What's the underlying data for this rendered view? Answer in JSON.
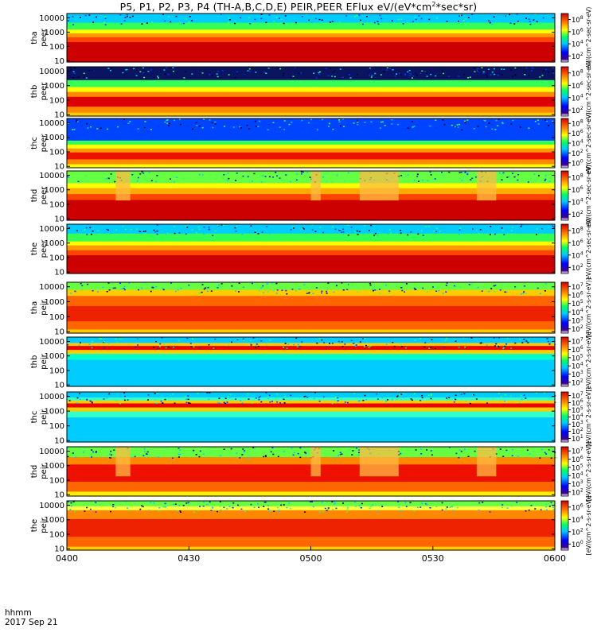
{
  "title": "P5, P1, P2, P3, P4 (TH-A,B,C,D,E) PEIR,PEER EFlux eV/(eV*cm",
  "title_sup": "2",
  "title_tail": "*sec*sr)",
  "footer": {
    "line1": "hhmm",
    "line2": "2017 Sep 21"
  },
  "chart_data": {
    "type": "heatmap",
    "title": "P5, P1, P2, P3, P4 (TH-A,B,C,D,E) PEIR,PEER EFlux eV/(eV*cm2*sec*sr)",
    "x_ticks": [
      "0400",
      "0430",
      "0500",
      "0530",
      "0600"
    ],
    "x_range_minutes": [
      0,
      120
    ],
    "y_scale": "log",
    "y_ticks": [
      "10",
      "100",
      "1000",
      "10000"
    ],
    "colorbar_label_electron": "eV/(cm^2-sec-sr-eV)",
    "colorbar_label_ion": "[eV/(cm^2-s-sr-eV)]",
    "panels": [
      {
        "label_line1": "tha",
        "label_line2": "peer",
        "species": "electron",
        "colorbar_ticks": [
          "10^2",
          "10^4",
          "10^6",
          "10^8"
        ]
      },
      {
        "label_line1": "thb",
        "label_line2": "peer",
        "species": "electron",
        "colorbar_ticks": [
          "10^2",
          "10^4",
          "10^6",
          "10^8"
        ]
      },
      {
        "label_line1": "thc",
        "label_line2": "peer",
        "species": "electron",
        "colorbar_ticks": [
          "10^0",
          "10^2",
          "10^4",
          "10^6",
          "10^8"
        ]
      },
      {
        "label_line1": "thd",
        "label_line2": "peer",
        "species": "electron",
        "colorbar_ticks": [
          "10^2",
          "10^4",
          "10^6",
          "10^8"
        ]
      },
      {
        "label_line1": "the",
        "label_line2": "peer",
        "species": "electron",
        "colorbar_ticks": [
          "10^2",
          "10^4",
          "10^6",
          "10^8"
        ]
      },
      {
        "label_line1": "tha",
        "label_line2": "peir",
        "species": "ion",
        "colorbar_ticks": [
          "10^2",
          "10^3",
          "10^4",
          "10^5",
          "10^6",
          "10^7"
        ]
      },
      {
        "label_line1": "thb",
        "label_line2": "peir",
        "species": "ion",
        "colorbar_ticks": [
          "10^2",
          "10^3",
          "10^4",
          "10^5",
          "10^6",
          "10^7"
        ]
      },
      {
        "label_line1": "thc",
        "label_line2": "peir",
        "species": "ion",
        "colorbar_ticks": [
          "10^1",
          "10^2",
          "10^3",
          "10^4",
          "10^5",
          "10^6",
          "10^7"
        ]
      },
      {
        "label_line1": "thd",
        "label_line2": "peir",
        "species": "ion",
        "colorbar_ticks": [
          "10^2",
          "10^3",
          "10^4",
          "10^5",
          "10^6",
          "10^7"
        ]
      },
      {
        "label_line1": "the",
        "label_line2": "peir",
        "species": "ion",
        "colorbar_ticks": [
          "10^0",
          "10^2",
          "10^4",
          "10^6"
        ]
      }
    ]
  }
}
